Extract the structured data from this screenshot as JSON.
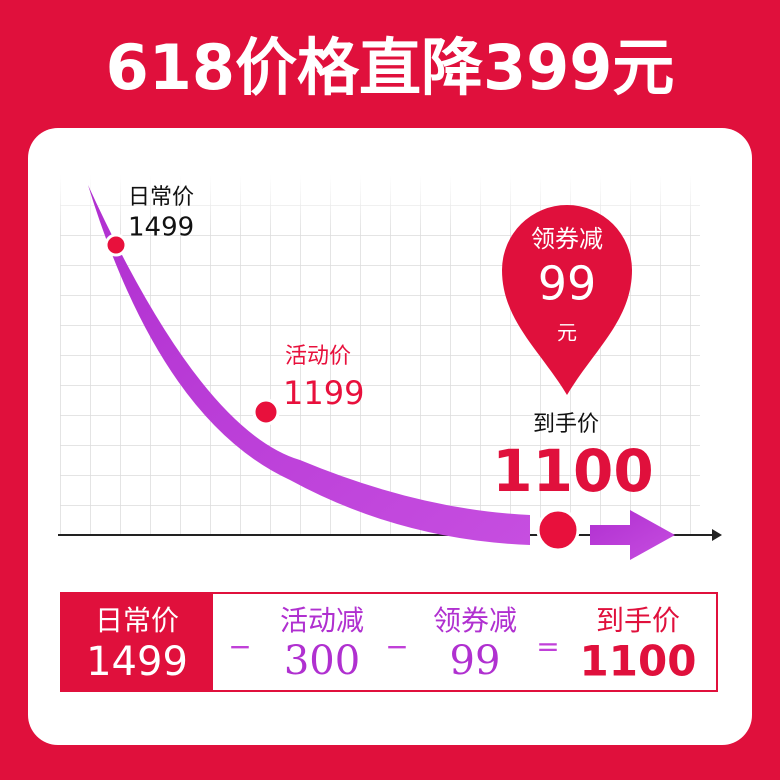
{
  "header": {
    "title": "618价格直降399元"
  },
  "curve": {
    "regular": {
      "label": "日常价",
      "price": "1499"
    },
    "event": {
      "label": "活动价",
      "price": "1199"
    },
    "coupon_pin": {
      "label": "领券减",
      "amount": "99",
      "unit": "元"
    },
    "final": {
      "label": "到手价",
      "price": "1100"
    }
  },
  "equation": {
    "regular": {
      "label": "日常价",
      "value": "1499"
    },
    "event_discount": {
      "label": "活动减",
      "value": "300"
    },
    "coupon_discount": {
      "label": "领券减",
      "value": "99"
    },
    "final": {
      "label": "到手价",
      "value": "1100"
    },
    "operators": [
      "−",
      "−",
      "="
    ]
  }
}
